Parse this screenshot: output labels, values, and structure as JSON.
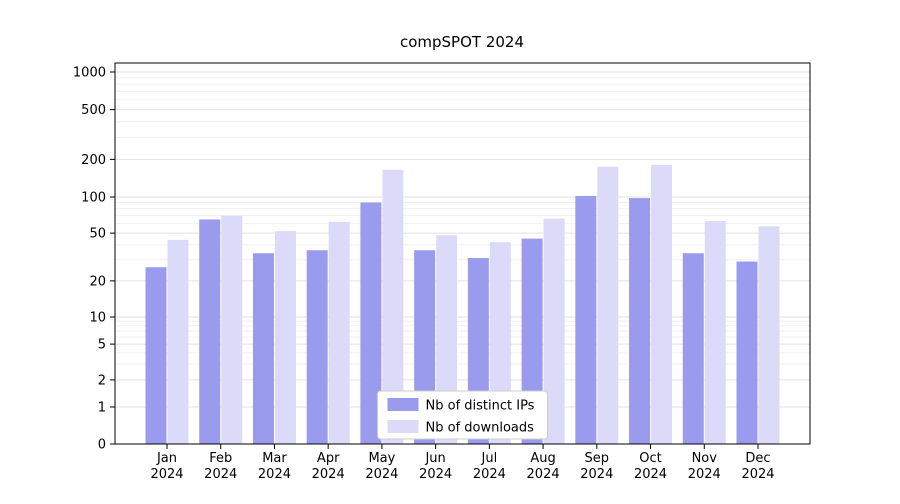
{
  "chart_data": {
    "type": "bar",
    "title": "compSPOT 2024",
    "categories": [
      "Jan\n2024",
      "Feb\n2024",
      "Mar\n2024",
      "Apr\n2024",
      "May\n2024",
      "Jun\n2024",
      "Jul\n2024",
      "Aug\n2024",
      "Sep\n2024",
      "Oct\n2024",
      "Nov\n2024",
      "Dec\n2024"
    ],
    "series": [
      {
        "name": "Nb of distinct IPs",
        "color": "#9b9bee",
        "values": [
          26,
          65,
          34,
          36,
          90,
          36,
          31,
          45,
          102,
          98,
          34,
          29
        ]
      },
      {
        "name": "Nb of downloads",
        "color": "#dbdbf9",
        "values": [
          44,
          70,
          52,
          62,
          165,
          48,
          42,
          66,
          175,
          181,
          63,
          57
        ]
      }
    ],
    "xlabel": "",
    "ylabel": "",
    "yscale": "symlog",
    "yticks": [
      0,
      1,
      2,
      5,
      10,
      20,
      50,
      100,
      200,
      500,
      1000
    ],
    "ylim": [
      0,
      1200
    ],
    "grid": true,
    "legend_position": "lower-center-inside"
  }
}
